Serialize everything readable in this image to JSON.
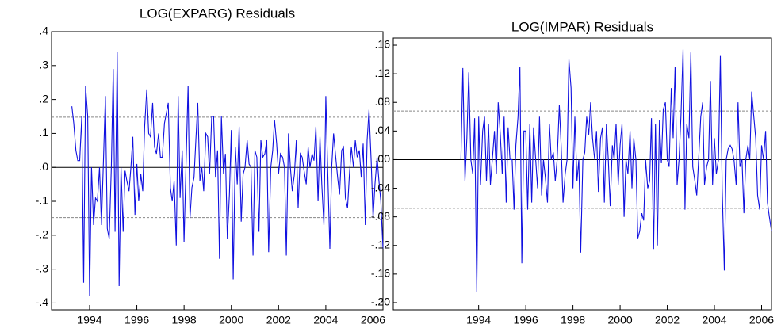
{
  "chart_data": [
    {
      "type": "line",
      "title": "LOG(EXPARG) Residuals",
      "color": "#1010e0",
      "x": [
        1993.25,
        1993.33,
        1993.42,
        1993.5,
        1993.58,
        1993.67,
        1993.75,
        1993.83,
        1993.92,
        1994,
        1994.08,
        1994.17,
        1994.25,
        1994.33,
        1994.42,
        1994.5,
        1994.58,
        1994.67,
        1994.75,
        1994.83,
        1994.92,
        1995,
        1995.08,
        1995.17,
        1995.25,
        1995.33,
        1995.42,
        1995.5,
        1995.58,
        1995.67,
        1995.75,
        1995.83,
        1995.92,
        1996,
        1996.08,
        1996.17,
        1996.25,
        1996.33,
        1996.42,
        1996.5,
        1996.58,
        1996.67,
        1996.75,
        1996.83,
        1996.92,
        1997,
        1997.08,
        1997.17,
        1997.25,
        1997.33,
        1997.42,
        1997.5,
        1997.58,
        1997.67,
        1997.75,
        1997.83,
        1997.92,
        1998,
        1998.08,
        1998.17,
        1998.25,
        1998.33,
        1998.42,
        1998.5,
        1998.58,
        1998.67,
        1998.75,
        1998.83,
        1998.92,
        1999,
        1999.08,
        1999.17,
        1999.25,
        1999.33,
        1999.42,
        1999.5,
        1999.58,
        1999.67,
        1999.75,
        1999.83,
        1999.92,
        2000,
        2000.08,
        2000.17,
        2000.25,
        2000.33,
        2000.42,
        2000.5,
        2000.58,
        2000.67,
        2000.75,
        2000.83,
        2000.92,
        2001,
        2001.08,
        2001.17,
        2001.25,
        2001.33,
        2001.42,
        2001.5,
        2001.58,
        2001.67,
        2001.75,
        2001.83,
        2001.92,
        2002,
        2002.08,
        2002.17,
        2002.25,
        2002.33,
        2002.42,
        2002.5,
        2002.58,
        2002.67,
        2002.75,
        2002.83,
        2002.92,
        2003,
        2003.08,
        2003.17,
        2003.25,
        2003.33,
        2003.42,
        2003.5,
        2003.58,
        2003.67,
        2003.75,
        2003.83,
        2003.92,
        2004,
        2004.08,
        2004.17,
        2004.25,
        2004.33,
        2004.42,
        2004.5,
        2004.58,
        2004.67,
        2004.75,
        2004.83,
        2004.92,
        2005,
        2005.08,
        2005.17,
        2005.25,
        2005.33,
        2005.42,
        2005.5,
        2005.58,
        2005.67,
        2005.75,
        2005.83,
        2005.92,
        2006,
        2006.08,
        2006.17,
        2006.25,
        2006.33,
        2006.42
      ],
      "values": [
        0.18,
        0.13,
        0.05,
        0.02,
        0.02,
        0.15,
        -0.34,
        0.24,
        0.15,
        -0.38,
        0.0,
        -0.17,
        -0.09,
        -0.1,
        0.0,
        -0.17,
        0.0,
        0.21,
        -0.18,
        -0.21,
        0.0,
        0.29,
        -0.19,
        0.34,
        -0.35,
        0.0,
        -0.19,
        -0.01,
        -0.04,
        -0.07,
        0.0,
        0.09,
        -0.14,
        0.01,
        -0.1,
        -0.02,
        -0.07,
        0.12,
        0.23,
        0.1,
        0.09,
        0.19,
        0.06,
        0.04,
        0.1,
        0.03,
        0.03,
        0.13,
        0.16,
        0.19,
        -0.06,
        -0.1,
        -0.04,
        -0.23,
        0.21,
        -0.09,
        0.05,
        -0.22,
        0.0,
        0.24,
        -0.15,
        -0.06,
        -0.03,
        0.08,
        0.19,
        -0.04,
        0.0,
        -0.07,
        0.1,
        0.09,
        -0.02,
        0.15,
        0.15,
        -0.03,
        0.05,
        -0.27,
        0.15,
        -0.02,
        0.04,
        -0.21,
        -0.08,
        0.11,
        -0.33,
        0.06,
        -0.05,
        0.12,
        -0.16,
        -0.02,
        0.0,
        0.08,
        0.01,
        0.0,
        -0.26,
        0.05,
        0.03,
        -0.19,
        0.08,
        0.03,
        0.04,
        0.08,
        -0.25,
        0.0,
        0.05,
        0.14,
        0.07,
        -0.02,
        0.04,
        0.03,
        0.0,
        -0.26,
        0.1,
        0.0,
        -0.07,
        -0.02,
        0.08,
        -0.12,
        0.04,
        0.03,
        -0.01,
        -0.05,
        0.06,
        0.0,
        0.04,
        0.02,
        0.12,
        -0.1,
        0.09,
        -0.05,
        -0.17,
        0.21,
        -0.01,
        -0.24,
        0.0,
        0.1,
        0.03,
        -0.03,
        -0.08,
        0.05,
        0.06,
        -0.09,
        -0.12,
        -0.02,
        0.06,
        0.0,
        0.08,
        0.03,
        0.05,
        -0.03,
        0.07,
        -0.17,
        0.08,
        0.17,
        0.02,
        -0.15,
        -0.05,
        0.03,
        -0.04,
        -0.1,
        -0.24
      ],
      "xlim": [
        1992.39,
        2006.42
      ],
      "xticks": [
        1994,
        1996,
        1998,
        2000,
        2002,
        2004,
        2006
      ],
      "ylim": [
        -0.42,
        0.4
      ],
      "yticks": [
        {
          "value": 0.4,
          "label": ".4"
        },
        {
          "value": 0.3,
          "label": ".3"
        },
        {
          "value": 0.2,
          "label": ".2"
        },
        {
          "value": 0.1,
          "label": ".1"
        },
        {
          "value": 0,
          "label": ".0"
        },
        {
          "value": -0.1,
          "label": "-.1"
        },
        {
          "value": -0.2,
          "label": "-.2"
        },
        {
          "value": -0.3,
          "label": "-.3"
        },
        {
          "value": -0.4,
          "label": "-.4"
        }
      ],
      "reference_lines": [
        0.148,
        -0.148
      ]
    },
    {
      "type": "line",
      "title": "LOG(IMPAR) Residuals",
      "color": "#1010e0",
      "x": [
        1993.25,
        1993.33,
        1993.42,
        1993.5,
        1993.58,
        1993.67,
        1993.75,
        1993.83,
        1993.92,
        1994,
        1994.08,
        1994.17,
        1994.25,
        1994.33,
        1994.42,
        1994.5,
        1994.58,
        1994.67,
        1994.75,
        1994.83,
        1994.92,
        1995,
        1995.08,
        1995.17,
        1995.25,
        1995.33,
        1995.42,
        1995.5,
        1995.58,
        1995.67,
        1995.75,
        1995.83,
        1995.92,
        1996,
        1996.08,
        1996.17,
        1996.25,
        1996.33,
        1996.42,
        1996.5,
        1996.58,
        1996.67,
        1996.75,
        1996.83,
        1996.92,
        1997,
        1997.08,
        1997.17,
        1997.25,
        1997.33,
        1997.42,
        1997.5,
        1997.58,
        1997.67,
        1997.75,
        1997.83,
        1997.92,
        1998,
        1998.08,
        1998.17,
        1998.25,
        1998.33,
        1998.42,
        1998.5,
        1998.58,
        1998.67,
        1998.75,
        1998.83,
        1998.92,
        1999,
        1999.08,
        1999.17,
        1999.25,
        1999.33,
        1999.42,
        1999.5,
        1999.58,
        1999.67,
        1999.75,
        1999.83,
        1999.92,
        2000,
        2000.08,
        2000.17,
        2000.25,
        2000.33,
        2000.42,
        2000.5,
        2000.58,
        2000.67,
        2000.75,
        2000.83,
        2000.92,
        2001,
        2001.08,
        2001.17,
        2001.25,
        2001.33,
        2001.42,
        2001.5,
        2001.58,
        2001.67,
        2001.75,
        2001.83,
        2001.92,
        2002,
        2002.08,
        2002.17,
        2002.25,
        2002.33,
        2002.42,
        2002.5,
        2002.58,
        2002.67,
        2002.75,
        2002.83,
        2002.92,
        2003,
        2003.08,
        2003.17,
        2003.25,
        2003.33,
        2003.42,
        2003.5,
        2003.58,
        2003.67,
        2003.75,
        2003.83,
        2003.92,
        2004,
        2004.08,
        2004.17,
        2004.25,
        2004.33,
        2004.42,
        2004.5,
        2004.58,
        2004.67,
        2004.75,
        2004.83,
        2004.92,
        2005,
        2005.08,
        2005.17,
        2005.25,
        2005.33,
        2005.42,
        2005.5,
        2005.58,
        2005.67,
        2005.75,
        2005.83,
        2005.92,
        2006,
        2006.08,
        2006.17,
        2006.25,
        2006.33,
        2006.42
      ],
      "values": [
        0.0,
        0.128,
        -0.03,
        0.03,
        0.122,
        0.0,
        -0.02,
        0.058,
        -0.185,
        0.06,
        -0.035,
        0.04,
        0.06,
        -0.03,
        0.05,
        -0.035,
        0.0,
        0.04,
        -0.02,
        0.08,
        0.035,
        -0.02,
        0.06,
        -0.06,
        0.045,
        0.0,
        0.0,
        -0.07,
        0.02,
        0.06,
        0.13,
        -0.145,
        0.04,
        0.04,
        -0.07,
        0.05,
        -0.06,
        0.045,
        0.0,
        -0.04,
        0.06,
        -0.05,
        0.0,
        -0.025,
        -0.06,
        0.05,
        0.0,
        0.01,
        -0.03,
        0.0,
        0.076,
        0.02,
        -0.06,
        -0.02,
        0.0,
        0.14,
        0.1,
        -0.04,
        0.06,
        -0.03,
        0.0,
        -0.13,
        0.0,
        0.01,
        0.06,
        0.035,
        0.08,
        0.03,
        0.0,
        0.04,
        -0.045,
        0.03,
        0.045,
        -0.06,
        0.05,
        0.0,
        -0.065,
        0.02,
        0.0,
        0.05,
        -0.035,
        0.02,
        0.05,
        -0.08,
        0.0,
        -0.02,
        0.04,
        -0.04,
        0.03,
        0.0,
        -0.11,
        -0.1,
        -0.075,
        -0.085,
        0.0,
        -0.04,
        -0.03,
        0.058,
        -0.125,
        0.05,
        -0.12,
        0.055,
        -0.005,
        0.07,
        0.08,
        0.0,
        -0.01,
        0.1,
        0.03,
        0.13,
        -0.035,
        0.0,
        0.06,
        0.154,
        -0.07,
        0.05,
        0.03,
        0.15,
        -0.01,
        -0.03,
        -0.05,
        0.0,
        0.06,
        0.08,
        -0.035,
        -0.01,
        0.0,
        0.11,
        -0.035,
        0.03,
        -0.02,
        0.0,
        0.145,
        -0.04,
        -0.155,
        0.0,
        0.015,
        0.02,
        0.015,
        0.0,
        -0.035,
        0.08,
        -0.01,
        0.0,
        -0.075,
        0.0,
        0.02,
        0.0,
        0.095,
        0.06,
        0.03,
        -0.05,
        -0.07,
        0.02,
        0.0,
        0.04,
        -0.06,
        -0.08,
        -0.1
      ],
      "xlim": [
        1990.38,
        2006.42
      ],
      "xticks": [
        1994,
        1996,
        1998,
        2000,
        2002,
        2004,
        2006
      ],
      "ylim": [
        -0.21,
        0.17
      ],
      "yticks": [
        {
          "value": 0.16,
          "label": ".16"
        },
        {
          "value": 0.12,
          "label": ".12"
        },
        {
          "value": 0.08,
          "label": ".08"
        },
        {
          "value": 0.04,
          "label": ".04"
        },
        {
          "value": 0,
          "label": ".00"
        },
        {
          "value": -0.04,
          "label": "-.04"
        },
        {
          "value": -0.08,
          "label": "-.08"
        },
        {
          "value": -0.12,
          "label": "-.12"
        },
        {
          "value": -0.16,
          "label": "-.16"
        },
        {
          "value": -0.2,
          "label": "-.20"
        }
      ],
      "reference_lines": [
        0.068,
        -0.068
      ]
    }
  ]
}
